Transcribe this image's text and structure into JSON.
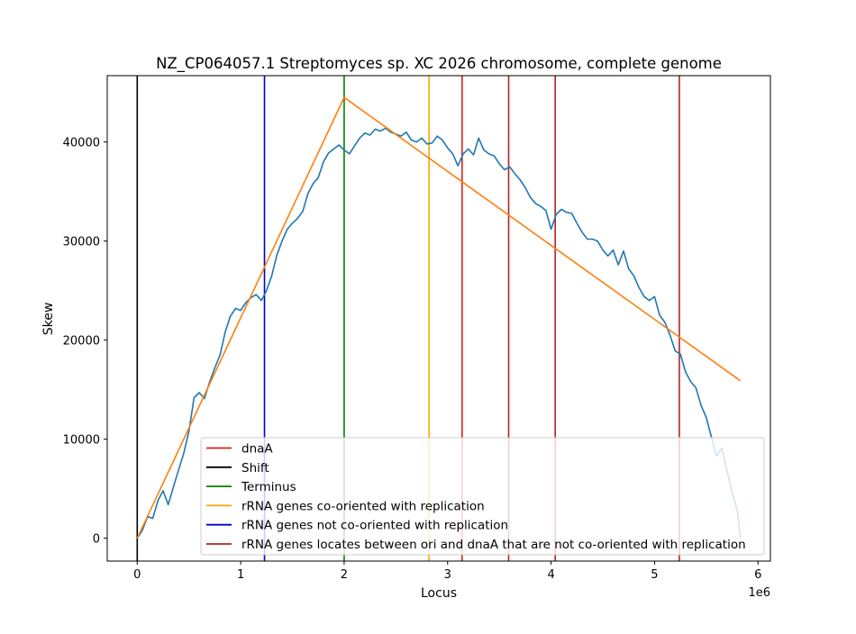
{
  "chart_data": {
    "type": "line",
    "title": "NZ_CP064057.1 Streptomyces sp. XC 2026 chromosome, complete genome",
    "xlabel": "Locus",
    "ylabel": "Skew",
    "x_offset_label": "1e6",
    "xlim": [
      -0.29,
      6.12
    ],
    "ylim": [
      -2300,
      46700
    ],
    "xticks": [
      0,
      1,
      2,
      3,
      4,
      5,
      6
    ],
    "xtick_labels": [
      "0",
      "1",
      "2",
      "3",
      "4",
      "5",
      "6"
    ],
    "yticks": [
      0,
      10000,
      20000,
      30000,
      40000
    ],
    "ytick_labels": [
      "0",
      "10000",
      "20000",
      "30000",
      "40000"
    ],
    "legend_position": "lower right",
    "series": [
      {
        "type": "line",
        "color": "#1f77b4",
        "x": [
          0,
          0.05,
          0.1,
          0.15,
          0.2,
          0.25,
          0.3,
          0.35,
          0.4,
          0.45,
          0.5,
          0.55,
          0.6,
          0.65,
          0.7,
          0.75,
          0.8,
          0.85,
          0.9,
          0.95,
          1.0,
          1.05,
          1.1,
          1.15,
          1.2,
          1.25,
          1.3,
          1.35,
          1.4,
          1.45,
          1.5,
          1.55,
          1.6,
          1.65,
          1.7,
          1.75,
          1.8,
          1.85,
          1.9,
          1.95,
          2.0,
          2.05,
          2.1,
          2.15,
          2.2,
          2.25,
          2.3,
          2.35,
          2.4,
          2.45,
          2.5,
          2.55,
          2.6,
          2.65,
          2.7,
          2.75,
          2.8,
          2.85,
          2.9,
          2.95,
          3.0,
          3.05,
          3.1,
          3.15,
          3.2,
          3.25,
          3.3,
          3.35,
          3.4,
          3.45,
          3.5,
          3.55,
          3.6,
          3.65,
          3.7,
          3.75,
          3.8,
          3.85,
          3.9,
          3.95,
          4.0,
          4.05,
          4.1,
          4.15,
          4.2,
          4.25,
          4.3,
          4.35,
          4.4,
          4.45,
          4.5,
          4.55,
          4.6,
          4.65,
          4.7,
          4.75,
          4.8,
          4.85,
          4.9,
          4.95,
          5.0,
          5.05,
          5.1,
          5.15,
          5.2,
          5.25,
          5.3,
          5.35,
          5.4,
          5.45,
          5.5,
          5.55,
          5.6,
          5.65,
          5.7,
          5.75,
          5.8,
          5.83
        ],
        "y": [
          0,
          800,
          2200,
          2000,
          3800,
          4800,
          3400,
          5200,
          6900,
          8600,
          10800,
          14200,
          14700,
          14100,
          15800,
          17200,
          18500,
          20800,
          22400,
          23200,
          23000,
          23800,
          24300,
          24600,
          24000,
          25000,
          26500,
          28600,
          30000,
          31200,
          31800,
          32300,
          33000,
          34800,
          35800,
          36400,
          38000,
          38900,
          39300,
          39700,
          39200,
          38800,
          39600,
          40400,
          40900,
          40700,
          41300,
          41100,
          41400,
          41000,
          40800,
          40600,
          41000,
          40200,
          40000,
          40400,
          39800,
          39900,
          40600,
          40200,
          39400,
          38800,
          37600,
          38800,
          39300,
          38700,
          40400,
          39200,
          38800,
          38600,
          37800,
          37200,
          37500,
          36800,
          36200,
          35400,
          34400,
          33800,
          33500,
          33100,
          31200,
          32700,
          33200,
          32900,
          32800,
          31800,
          30900,
          30200,
          30200,
          30000,
          29100,
          28500,
          29100,
          27600,
          29000,
          27200,
          26500,
          25300,
          24400,
          24000,
          24400,
          22500,
          21800,
          20500,
          18900,
          18600,
          16800,
          15800,
          15200,
          13400,
          12200,
          10200,
          8300,
          9100,
          6800,
          4700,
          2800,
          0
        ]
      },
      {
        "type": "line",
        "color": "#ff7f0e",
        "x": [
          0,
          2.0,
          5.83
        ],
        "y": [
          0,
          44500,
          15900
        ]
      }
    ],
    "vlines": [
      {
        "x": 0,
        "color": "#000000",
        "legend": "Shift"
      },
      {
        "x": 1.23,
        "color": "#0000cd",
        "legend": "rRNA genes not co-oriented with replication"
      },
      {
        "x": 2.0,
        "color": "#008000",
        "legend": "Terminus"
      },
      {
        "x": 2.82,
        "color": "#ffa500",
        "legend": "rRNA genes co-oriented with replication"
      },
      {
        "x": 3.14,
        "color": "#d62020",
        "legend": "dnaA"
      },
      {
        "x": 3.59,
        "color": "#b22222",
        "legend": "rRNA genes locates between ori and dnaA that are not co-oriented with replication"
      },
      {
        "x": 4.04,
        "color": "#b22222",
        "legend": "rRNA genes locates between ori and dnaA that are not co-oriented with replication"
      },
      {
        "x": 5.24,
        "color": "#b22222",
        "legend": "rRNA genes locates between ori and dnaA that are not co-oriented with replication"
      }
    ],
    "legend": [
      {
        "label": "dnaA",
        "color": "#d62020"
      },
      {
        "label": "Shift",
        "color": "#000000"
      },
      {
        "label": "Terminus",
        "color": "#008000"
      },
      {
        "label": "rRNA genes co-oriented with replication",
        "color": "#ffa500"
      },
      {
        "label": "rRNA genes not co-oriented with replication",
        "color": "#0000cd"
      },
      {
        "label": "rRNA genes locates between ori and dnaA that are not co-oriented with replication",
        "color": "#b22222"
      }
    ]
  }
}
